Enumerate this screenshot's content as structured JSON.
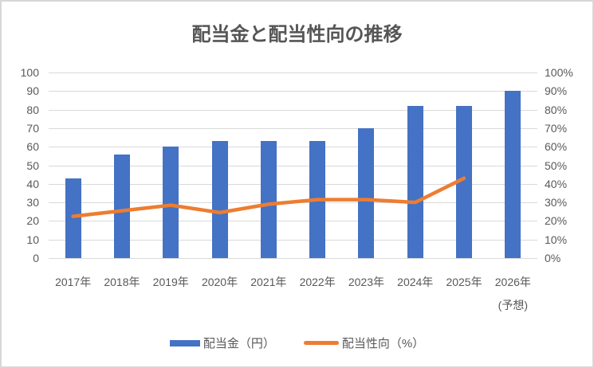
{
  "chart_data": {
    "type": "combo-bar-line",
    "title": "配当金と配当性向の推移",
    "categories": [
      "2017年",
      "2018年",
      "2019年",
      "2020年",
      "2021年",
      "2022年",
      "2023年",
      "2024年",
      "2025年",
      "2026年"
    ],
    "category_note": {
      "index": 9,
      "label": "(予想)"
    },
    "series": [
      {
        "name": "配当金（円）",
        "type": "bar",
        "axis": "left",
        "color": "#4472C4",
        "values": [
          43,
          56,
          60,
          63,
          63,
          63,
          70,
          82,
          82,
          90
        ]
      },
      {
        "name": "配当性向（%）",
        "type": "line",
        "axis": "right",
        "color": "#ED7D31",
        "values": [
          22.5,
          25.5,
          28.5,
          24.5,
          29,
          31.5,
          31.5,
          30,
          43,
          null
        ]
      }
    ],
    "left_axis": {
      "min": 0,
      "max": 100,
      "step": 10,
      "tick_labels": [
        "0",
        "10",
        "20",
        "30",
        "40",
        "50",
        "60",
        "70",
        "80",
        "90",
        "100"
      ]
    },
    "right_axis": {
      "min": 0,
      "max": 100,
      "step": 10,
      "tick_labels": [
        "0%",
        "10%",
        "20%",
        "30%",
        "40%",
        "50%",
        "60%",
        "70%",
        "80%",
        "90%",
        "100%"
      ]
    },
    "grid": "horizontal",
    "legend_position": "bottom",
    "colors": {
      "bar": "#4472C4",
      "line": "#ED7D31",
      "grid": "#D9D9D9",
      "text": "#595959"
    }
  }
}
